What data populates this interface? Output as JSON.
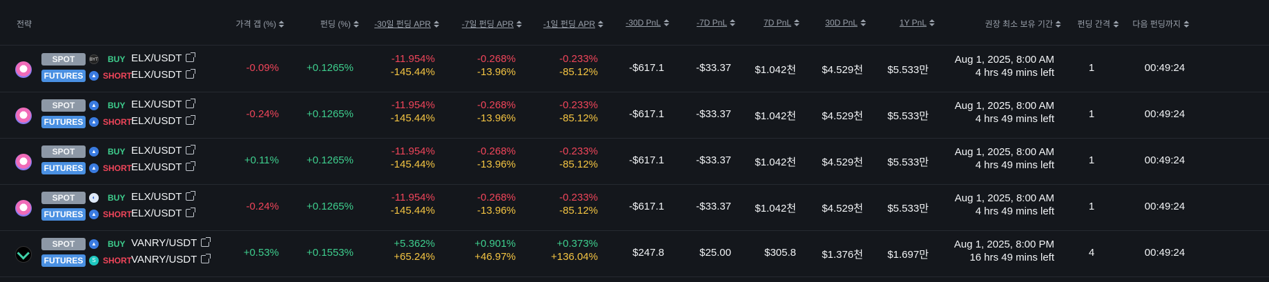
{
  "header": {
    "strategy": "전략",
    "price_gap": "가격 갭 (%)",
    "funding": "펀딩 (%)",
    "apr_30d": "-30일 펀딩 APR",
    "apr_7d": "-7일 펀딩 APR",
    "apr_1d": "-1일 펀딩 APR",
    "pnl_m30d": "-30D PnL",
    "pnl_m7d": "-7D PnL",
    "pnl_7d": "7D PnL",
    "pnl_30d": "30D PnL",
    "pnl_1y": "1Y PnL",
    "min_hold": "권장 최소 보유 기간",
    "interval": "펀딩 간격",
    "next_funding": "다음 펀딩까지"
  },
  "rows": [
    {
      "coin": "ELX",
      "spot_label": "SPOT",
      "futures_label": "FUTURES",
      "spot_exchange_icon": "exchange-icon-dark",
      "futures_exchange_icon": "exchange-icon-blue",
      "buy_label": "BUY",
      "short_label": "SHORT",
      "spot_pair": "ELX/USDT",
      "futures_pair": "ELX/USDT",
      "price_gap": "-0.09%",
      "funding": "+0.1265%",
      "apr_30d_a": "-11.954%",
      "apr_30d_b": "-145.44%",
      "apr_7d_a": "-0.268%",
      "apr_7d_b": "-13.96%",
      "apr_1d_a": "-0.233%",
      "apr_1d_b": "-85.12%",
      "pnl_m30d": "-$617.1",
      "pnl_m7d": "-$33.37",
      "pnl_7d": "$1.042천",
      "pnl_30d": "$4.529천",
      "pnl_1y": "$5.533만",
      "hold_date": "Aug 1, 2025, 8:00 AM",
      "hold_left": "4 hrs 49 mins left",
      "interval": "1",
      "next_funding": "00:49:24"
    },
    {
      "coin": "ELX",
      "spot_label": "SPOT",
      "futures_label": "FUTURES",
      "spot_exchange_icon": "exchange-icon-blue",
      "futures_exchange_icon": "exchange-icon-blue",
      "buy_label": "BUY",
      "short_label": "SHORT",
      "spot_pair": "ELX/USDT",
      "futures_pair": "ELX/USDT",
      "price_gap": "-0.24%",
      "funding": "+0.1265%",
      "apr_30d_a": "-11.954%",
      "apr_30d_b": "-145.44%",
      "apr_7d_a": "-0.268%",
      "apr_7d_b": "-13.96%",
      "apr_1d_a": "-0.233%",
      "apr_1d_b": "-85.12%",
      "pnl_m30d": "-$617.1",
      "pnl_m7d": "-$33.37",
      "pnl_7d": "$1.042천",
      "pnl_30d": "$4.529천",
      "pnl_1y": "$5.533만",
      "hold_date": "Aug 1, 2025, 8:00 AM",
      "hold_left": "4 hrs 49 mins left",
      "interval": "1",
      "next_funding": "00:49:24"
    },
    {
      "coin": "ELX",
      "spot_label": "SPOT",
      "futures_label": "FUTURES",
      "spot_exchange_icon": "exchange-icon-blue",
      "futures_exchange_icon": "exchange-icon-blue",
      "buy_label": "BUY",
      "short_label": "SHORT",
      "spot_pair": "ELX/USDT",
      "futures_pair": "ELX/USDT",
      "price_gap": "+0.11%",
      "funding": "+0.1265%",
      "apr_30d_a": "-11.954%",
      "apr_30d_b": "-145.44%",
      "apr_7d_a": "-0.268%",
      "apr_7d_b": "-13.96%",
      "apr_1d_a": "-0.233%",
      "apr_1d_b": "-85.12%",
      "pnl_m30d": "-$617.1",
      "pnl_m7d": "-$33.37",
      "pnl_7d": "$1.042천",
      "pnl_30d": "$4.529천",
      "pnl_1y": "$5.533만",
      "hold_date": "Aug 1, 2025, 8:00 AM",
      "hold_left": "4 hrs 49 mins left",
      "interval": "1",
      "next_funding": "00:49:24"
    },
    {
      "coin": "ELX",
      "spot_label": "SPOT",
      "futures_label": "FUTURES",
      "spot_exchange_icon": "exchange-icon-light",
      "futures_exchange_icon": "exchange-icon-blue",
      "buy_label": "BUY",
      "short_label": "SHORT",
      "spot_pair": "ELX/USDT",
      "futures_pair": "ELX/USDT",
      "price_gap": "-0.24%",
      "funding": "+0.1265%",
      "apr_30d_a": "-11.954%",
      "apr_30d_b": "-145.44%",
      "apr_7d_a": "-0.268%",
      "apr_7d_b": "-13.96%",
      "apr_1d_a": "-0.233%",
      "apr_1d_b": "-85.12%",
      "pnl_m30d": "-$617.1",
      "pnl_m7d": "-$33.37",
      "pnl_7d": "$1.042천",
      "pnl_30d": "$4.529천",
      "pnl_1y": "$5.533만",
      "hold_date": "Aug 1, 2025, 8:00 AM",
      "hold_left": "4 hrs 49 mins left",
      "interval": "1",
      "next_funding": "00:49:24"
    },
    {
      "coin": "VANRY",
      "spot_label": "SPOT",
      "futures_label": "FUTURES",
      "spot_exchange_icon": "exchange-icon-blue",
      "futures_exchange_icon": "exchange-icon-teal",
      "buy_label": "BUY",
      "short_label": "SHORT",
      "spot_pair": "VANRY/USDT",
      "futures_pair": "VANRY/USDT",
      "price_gap": "+0.53%",
      "funding": "+0.1553%",
      "apr_30d_a": "+5.362%",
      "apr_30d_b": "+65.24%",
      "apr_7d_a": "+0.901%",
      "apr_7d_b": "+46.97%",
      "apr_1d_a": "+0.373%",
      "apr_1d_b": "+136.04%",
      "pnl_m30d": "$247.8",
      "pnl_m7d": "$25.00",
      "pnl_7d": "$305.8",
      "pnl_30d": "$1.376천",
      "pnl_1y": "$1.697만",
      "hold_date": "Aug 1, 2025, 8:00 PM",
      "hold_left": "16 hrs 49 mins left",
      "interval": "4",
      "next_funding": "00:49:24"
    }
  ]
}
